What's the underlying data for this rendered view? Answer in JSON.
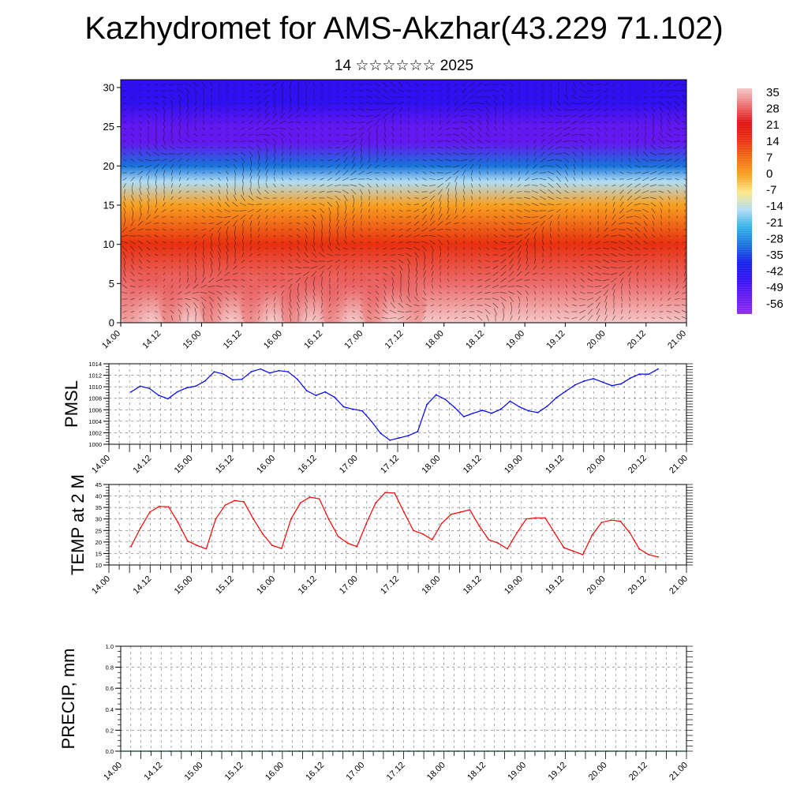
{
  "header": {
    "title": "Kazhydromet for AMS-Akzhar(43.229 71.102)",
    "subtitle": "14 ☆☆☆☆☆☆ 2025"
  },
  "chart_data": [
    {
      "type": "heatmap",
      "name": "upper-air",
      "title": "",
      "ylabel": "",
      "ylim": [
        0,
        31
      ],
      "yticks": [
        0,
        5,
        10,
        15,
        20,
        25,
        30
      ],
      "x_ticks": [
        "14.00",
        "14.12",
        "15.00",
        "15.12",
        "16.00",
        "16.12",
        "17.00",
        "17.12",
        "18.00",
        "18.12",
        "19.00",
        "19.12",
        "20.00",
        "20.12",
        "21.00"
      ],
      "colorbar": {
        "labels": [
          "35",
          "28",
          "21",
          "14",
          "7",
          "0",
          "-7",
          "-14",
          "-21",
          "-28",
          "-35",
          "-42",
          "-49",
          "-56"
        ],
        "colors": [
          "#f5c8c8",
          "#ec6c6c",
          "#e01010",
          "#e83010",
          "#f06a10",
          "#f8a020",
          "#fce888",
          "#b0dcf4",
          "#30b0e8",
          "#1874dc",
          "#1020e8",
          "#3010f0",
          "#6418f0",
          "#8a28f0"
        ]
      },
      "temperature_profile": [
        {
          "height": 0,
          "temperature": 30
        },
        {
          "height": 5,
          "temperature": 21
        },
        {
          "height": 10,
          "temperature": 7
        },
        {
          "height": 15,
          "temperature": -7
        },
        {
          "height": 18,
          "temperature": -21
        },
        {
          "height": 20,
          "temperature": -35
        },
        {
          "height": 23,
          "temperature": -56
        },
        {
          "height": 25,
          "temperature": -56
        },
        {
          "height": 28,
          "temperature": -49
        },
        {
          "height": 31,
          "temperature": -49
        }
      ],
      "warm_cores": [
        0.75,
        1.75,
        2.75,
        3.75,
        4.75,
        5.75,
        6.75
      ],
      "features": "wind vectors overlaid"
    },
    {
      "type": "line",
      "name": "pmsl",
      "ylabel": "PMSL",
      "ylim": [
        1000,
        1014
      ],
      "yticks": [
        1000,
        1002,
        1004,
        1006,
        1008,
        1010,
        1012,
        1014
      ],
      "x_ticks": [
        "14.00",
        "14.12",
        "15.00",
        "15.12",
        "16.00",
        "16.12",
        "17.00",
        "17.12",
        "18.00",
        "18.12",
        "19.00",
        "19.12",
        "20.00",
        "20.12",
        "21.00"
      ],
      "color": "#0000ff",
      "values": [
        1009.1,
        1010.1,
        1009.7,
        1008.5,
        1007.9,
        1009.1,
        1009.8,
        1010.1,
        1011.0,
        1012.6,
        1012.2,
        1011.2,
        1011.3,
        1012.6,
        1013.1,
        1012.4,
        1012.8,
        1012.6,
        1011.3,
        1009.3,
        1008.5,
        1009.1,
        1008.2,
        1006.5,
        1006.1,
        1005.8,
        1004.0,
        1001.9,
        1000.7,
        1001.1,
        1001.5,
        1002.2,
        1006.9,
        1008.6,
        1007.8,
        1006.4,
        1004.8,
        1005.4,
        1005.9,
        1005.4,
        1006.1,
        1007.5,
        1006.5,
        1005.8,
        1005.5,
        1006.6,
        1008.1,
        1009.2,
        1010.3,
        1011.0,
        1011.4,
        1010.8,
        1010.2,
        1010.5,
        1011.5,
        1012.2,
        1012.2,
        1013.1
      ]
    },
    {
      "type": "line",
      "name": "temperature",
      "ylabel": "TEMP at 2 M",
      "ylim": [
        10,
        45
      ],
      "yticks": [
        10,
        15,
        20,
        25,
        30,
        35,
        40,
        45
      ],
      "x_ticks": [
        "14.00",
        "14.12",
        "15.00",
        "15.12",
        "16.00",
        "16.12",
        "17.00",
        "17.12",
        "18.00",
        "18.12",
        "19.00",
        "19.12",
        "20.00",
        "20.12",
        "21.00"
      ],
      "color": "#ff0000",
      "values": [
        18,
        26,
        33,
        35.5,
        35.3,
        28.5,
        20.5,
        18.5,
        17,
        30,
        36,
        38,
        37.5,
        30,
        23.5,
        18.5,
        17.2,
        30,
        37,
        39.5,
        38.8,
        30,
        22.5,
        19.5,
        18,
        28,
        37,
        41.5,
        41.3,
        33,
        25,
        23.5,
        21,
        28,
        32,
        33,
        34,
        27,
        21,
        19.5,
        17,
        24,
        30,
        30.5,
        30.5,
        24,
        17.5,
        16,
        14.5,
        23,
        28.5,
        29.5,
        29,
        24,
        17,
        14.5,
        13.5
      ]
    },
    {
      "type": "line",
      "name": "precipitation",
      "ylabel": "PRECIP, mm",
      "ylim": [
        0,
        1
      ],
      "yticks": [
        "0.0",
        "0.2",
        "0.4",
        "0.6",
        "0.8",
        "1.0"
      ],
      "x_ticks": [
        "14.00",
        "14.12",
        "15.00",
        "15.12",
        "16.00",
        "16.12",
        "17.00",
        "17.12",
        "18.00",
        "18.12",
        "19.00",
        "19.12",
        "20.00",
        "20.12",
        "21.00"
      ],
      "color": "#0a3a1a",
      "values": [
        0,
        0,
        0,
        0,
        0,
        0,
        0,
        0,
        0,
        0,
        0,
        0,
        0,
        0,
        0,
        0,
        0,
        0,
        0,
        0,
        0,
        0,
        0,
        0,
        0,
        0,
        0,
        0,
        0,
        0,
        0,
        0,
        0,
        0,
        0,
        0,
        0,
        0,
        0,
        0,
        0,
        0,
        0,
        0,
        0,
        0,
        0,
        0,
        0,
        0,
        0,
        0,
        0,
        0,
        0,
        0,
        0,
        0
      ]
    }
  ]
}
